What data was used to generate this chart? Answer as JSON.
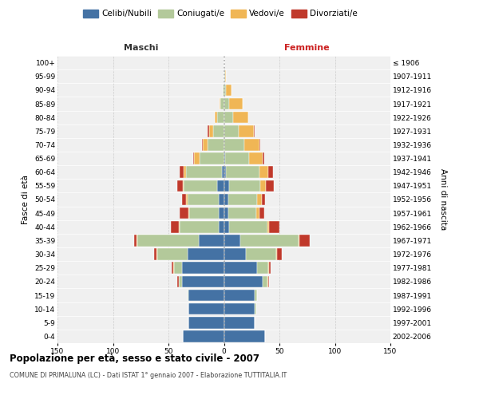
{
  "age_groups": [
    "100+",
    "95-99",
    "90-94",
    "85-89",
    "80-84",
    "75-79",
    "70-74",
    "65-69",
    "60-64",
    "55-59",
    "50-54",
    "45-49",
    "40-44",
    "35-39",
    "30-34",
    "25-29",
    "20-24",
    "15-19",
    "10-14",
    "5-9",
    "0-4"
  ],
  "birth_years": [
    "≤ 1906",
    "1907-1911",
    "1912-1916",
    "1917-1921",
    "1922-1926",
    "1927-1931",
    "1932-1936",
    "1937-1941",
    "1942-1946",
    "1947-1951",
    "1952-1956",
    "1957-1961",
    "1962-1966",
    "1967-1971",
    "1972-1976",
    "1977-1981",
    "1982-1986",
    "1987-1991",
    "1992-1996",
    "1997-2001",
    "2002-2006"
  ],
  "males": {
    "celibi": [
      0,
      0,
      0,
      0,
      0,
      0,
      0,
      0,
      2,
      6,
      5,
      5,
      5,
      23,
      33,
      38,
      38,
      32,
      32,
      32,
      37
    ],
    "coniugati": [
      0,
      0,
      1,
      3,
      6,
      10,
      15,
      22,
      32,
      30,
      28,
      26,
      35,
      55,
      27,
      7,
      3,
      1,
      0,
      0,
      0
    ],
    "vedovi": [
      0,
      0,
      0,
      1,
      2,
      3,
      4,
      5,
      2,
      1,
      1,
      1,
      1,
      1,
      1,
      1,
      0,
      0,
      0,
      0,
      0
    ],
    "divorziati": [
      0,
      0,
      0,
      0,
      0,
      2,
      1,
      1,
      4,
      5,
      4,
      8,
      7,
      2,
      2,
      1,
      1,
      0,
      0,
      0,
      0
    ]
  },
  "females": {
    "nubili": [
      0,
      0,
      0,
      0,
      0,
      0,
      0,
      1,
      2,
      5,
      4,
      4,
      5,
      15,
      20,
      30,
      35,
      28,
      28,
      28,
      37
    ],
    "coniugate": [
      0,
      1,
      2,
      5,
      8,
      13,
      18,
      22,
      30,
      28,
      26,
      25,
      34,
      52,
      27,
      10,
      4,
      2,
      1,
      0,
      0
    ],
    "vedove": [
      0,
      1,
      5,
      12,
      14,
      14,
      14,
      12,
      8,
      5,
      4,
      3,
      2,
      1,
      1,
      1,
      1,
      0,
      0,
      0,
      0
    ],
    "divorziate": [
      0,
      0,
      0,
      0,
      0,
      1,
      1,
      1,
      4,
      7,
      3,
      4,
      9,
      9,
      4,
      1,
      1,
      0,
      0,
      0,
      0
    ]
  },
  "colors": {
    "celibi": "#4472a4",
    "coniugati": "#b3c99a",
    "vedovi": "#f0b655",
    "divorziati": "#c0392b"
  },
  "xlim": 150,
  "title": "Popolazione per età, sesso e stato civile - 2007",
  "subtitle": "COMUNE DI PRIMALUNA (LC) - Dati ISTAT 1° gennaio 2007 - Elaborazione TUTTITALIA.IT",
  "ylabel_left": "Fasce di età",
  "ylabel_right": "Anni di nascita",
  "xlabel_left": "Maschi",
  "xlabel_right": "Femmine",
  "bg_color": "#f0f0f0",
  "grid_color": "#cccccc"
}
